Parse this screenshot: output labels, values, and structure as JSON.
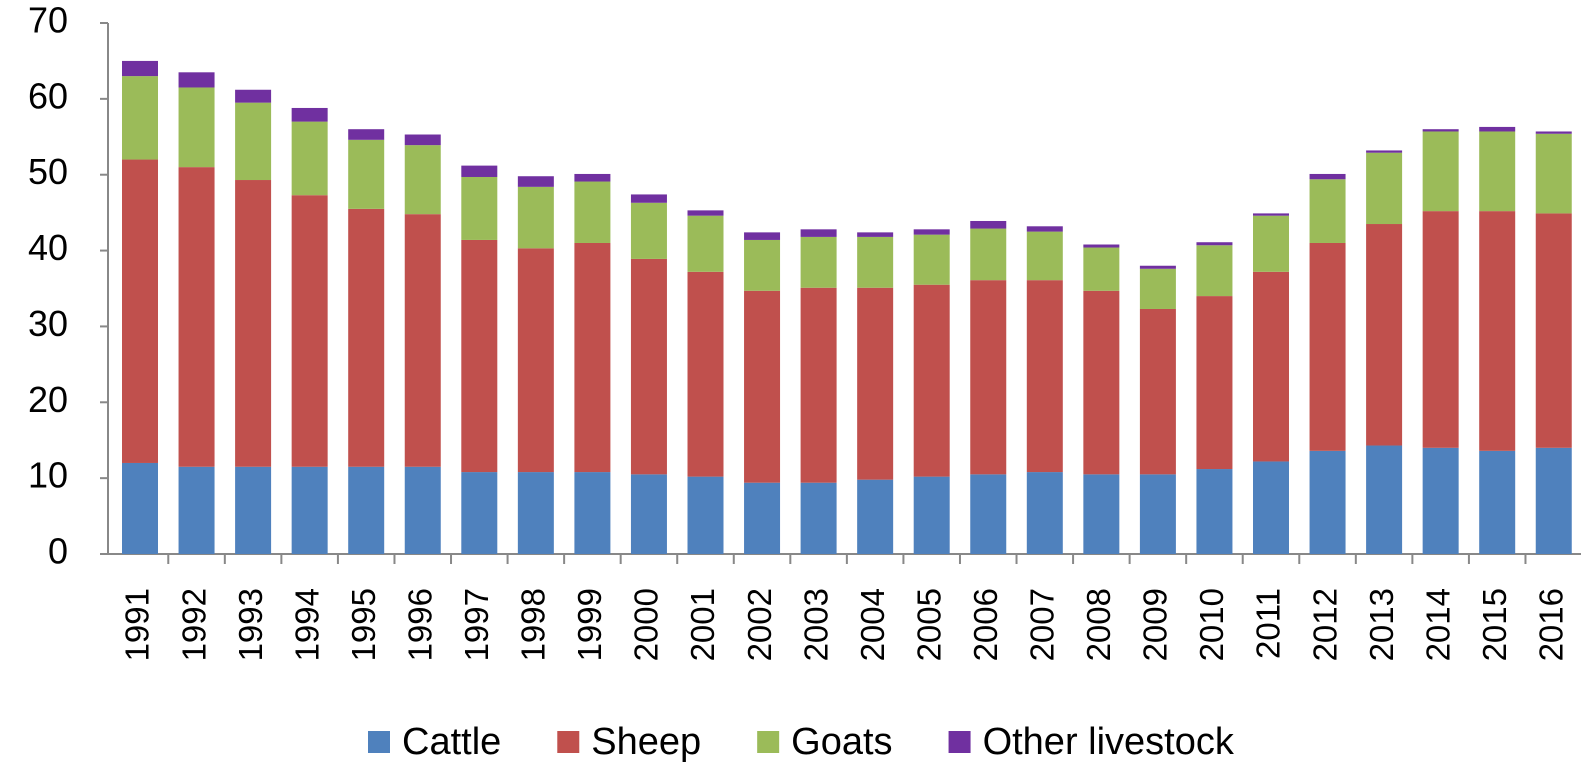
{
  "chart_data": {
    "type": "stacked_bar",
    "categories": [
      "1991",
      "1992",
      "1993",
      "1994",
      "1995",
      "1996",
      "1997",
      "1998",
      "1999",
      "2000",
      "2001",
      "2002",
      "2003",
      "2004",
      "2005",
      "2006",
      "2007",
      "2008",
      "2009",
      "2010",
      "2011",
      "2012",
      "2013",
      "2014",
      "2015",
      "2016"
    ],
    "series": [
      {
        "name": "Cattle",
        "color": "#4f81bd",
        "values": [
          12,
          11.5,
          11.5,
          11.5,
          11.5,
          11.5,
          10.8,
          10.8,
          10.8,
          10.5,
          10.2,
          9.4,
          9.4,
          9.8,
          10.2,
          10.5,
          10.8,
          10.5,
          10.5,
          11.2,
          12.2,
          13.6,
          14.3,
          14,
          13.6,
          14
        ]
      },
      {
        "name": "Sheep",
        "color": "#c0504d",
        "values": [
          40,
          39.5,
          37.8,
          35.8,
          34,
          33.3,
          30.6,
          29.5,
          30.2,
          28.4,
          27,
          25.3,
          25.7,
          25.3,
          25.3,
          25.6,
          25.3,
          24.2,
          21.8,
          22.8,
          25,
          27.4,
          29.2,
          31.2,
          31.6,
          30.9
        ]
      },
      {
        "name": "Goats",
        "color": "#9bbb59",
        "values": [
          11,
          10.5,
          10.2,
          9.7,
          9.1,
          9.1,
          8.3,
          8.1,
          8.1,
          7.4,
          7.4,
          6.7,
          6.7,
          6.7,
          6.6,
          6.8,
          6.4,
          5.7,
          5.3,
          6.7,
          7.4,
          8.4,
          9.4,
          10.5,
          10.5,
          10.5
        ]
      },
      {
        "name": "Other livestock",
        "color": "#7030a0",
        "values": [
          2,
          2,
          1.7,
          1.8,
          1.4,
          1.4,
          1.5,
          1.4,
          1,
          1.1,
          0.7,
          1,
          1,
          0.6,
          0.7,
          1,
          0.7,
          0.4,
          0.4,
          0.4,
          0.3,
          0.7,
          0.3,
          0.3,
          0.6,
          0.3
        ]
      }
    ],
    "ylim": [
      0,
      70
    ],
    "yticks": [
      0,
      10,
      20,
      30,
      40,
      50,
      60,
      70
    ],
    "grid": false,
    "legend": "bottom"
  }
}
